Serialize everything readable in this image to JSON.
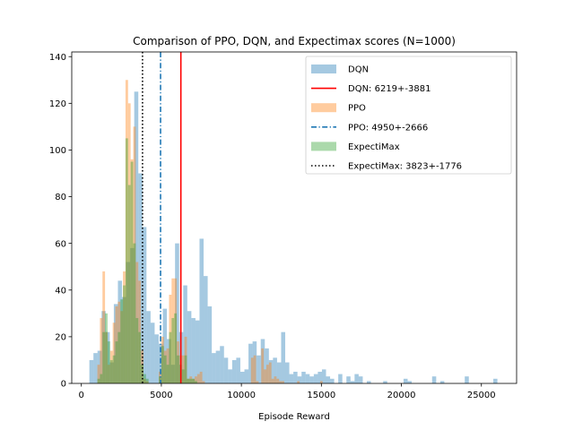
{
  "chart_data": {
    "type": "bar",
    "title": "Comparison of PPO, DQN, and Expectimax scores (N=1000)",
    "xlabel": "Episode Reward",
    "ylabel": "",
    "xlim": [
      -600,
      27200
    ],
    "ylim": [
      0,
      142
    ],
    "xticks": [
      0,
      5000,
      10000,
      15000,
      20000,
      25000
    ],
    "yticks": [
      0,
      20,
      40,
      60,
      80,
      100,
      120,
      140
    ],
    "legend_position": "top-right",
    "series": [
      {
        "name": "DQN",
        "kind": "histogram",
        "color": "#1f77b4",
        "alpha": 0.4,
        "bin_width": 255,
        "bins": [
          [
            500,
            10
          ],
          [
            755,
            13
          ],
          [
            1010,
            14
          ],
          [
            1265,
            31
          ],
          [
            1520,
            22
          ],
          [
            1775,
            9
          ],
          [
            2030,
            34
          ],
          [
            2285,
            44
          ],
          [
            2540,
            37
          ],
          [
            2795,
            52
          ],
          [
            3050,
            58
          ],
          [
            3305,
            125
          ],
          [
            3560,
            90
          ],
          [
            3815,
            67
          ],
          [
            4070,
            31
          ],
          [
            4325,
            26
          ],
          [
            4580,
            21
          ],
          [
            4835,
            17
          ],
          [
            5090,
            32
          ],
          [
            5345,
            19
          ],
          [
            5600,
            8
          ],
          [
            5855,
            60
          ],
          [
            6110,
            22
          ],
          [
            6365,
            42
          ],
          [
            6620,
            31
          ],
          [
            6875,
            28
          ],
          [
            7130,
            27
          ],
          [
            7385,
            62
          ],
          [
            7640,
            46
          ],
          [
            7895,
            33
          ],
          [
            8150,
            13
          ],
          [
            8405,
            14
          ],
          [
            8660,
            16
          ],
          [
            8915,
            11
          ],
          [
            9170,
            6
          ],
          [
            9425,
            10
          ],
          [
            9680,
            11
          ],
          [
            9935,
            5
          ],
          [
            10190,
            6
          ],
          [
            10445,
            17
          ],
          [
            10700,
            18
          ],
          [
            10955,
            12
          ],
          [
            11210,
            19
          ],
          [
            11465,
            15
          ],
          [
            11720,
            10
          ],
          [
            11975,
            11
          ],
          [
            12230,
            9
          ],
          [
            12485,
            22
          ],
          [
            12740,
            9
          ],
          [
            12995,
            4
          ],
          [
            13250,
            5
          ],
          [
            13505,
            3
          ],
          [
            13760,
            5
          ],
          [
            14015,
            4
          ],
          [
            14270,
            3
          ],
          [
            14525,
            4
          ],
          [
            14780,
            5
          ],
          [
            15035,
            6
          ],
          [
            15290,
            3
          ],
          [
            15545,
            2
          ],
          [
            16055,
            4
          ],
          [
            16565,
            3
          ],
          [
            16820,
            1
          ],
          [
            17075,
            4
          ],
          [
            17330,
            3
          ],
          [
            17840,
            1
          ],
          [
            18860,
            1
          ],
          [
            20135,
            2
          ],
          [
            20390,
            1
          ],
          [
            21920,
            3
          ],
          [
            22430,
            1
          ],
          [
            23960,
            3
          ],
          [
            25745,
            2
          ]
        ]
      },
      {
        "name": "PPO",
        "kind": "histogram",
        "color": "#ff7f0e",
        "alpha": 0.4,
        "bin_width": 160,
        "bins": [
          [
            1000,
            8
          ],
          [
            1160,
            28
          ],
          [
            1320,
            48
          ],
          [
            1480,
            22
          ],
          [
            1640,
            8
          ],
          [
            1800,
            14
          ],
          [
            1960,
            26
          ],
          [
            2120,
            33
          ],
          [
            2280,
            35
          ],
          [
            2440,
            31
          ],
          [
            2600,
            48
          ],
          [
            2760,
            130
          ],
          [
            2920,
            120
          ],
          [
            3080,
            96
          ],
          [
            3240,
            110
          ],
          [
            3400,
            52
          ],
          [
            3560,
            44
          ],
          [
            3720,
            14
          ],
          [
            3880,
            2
          ],
          [
            4040,
            1
          ],
          [
            4840,
            5
          ],
          [
            5000,
            20
          ],
          [
            5160,
            14
          ],
          [
            5320,
            15
          ],
          [
            5480,
            38
          ],
          [
            5640,
            45
          ],
          [
            5800,
            45
          ],
          [
            5960,
            18
          ],
          [
            6120,
            12
          ],
          [
            6280,
            12
          ],
          [
            6440,
            20
          ],
          [
            6600,
            2
          ],
          [
            6760,
            3
          ],
          [
            6920,
            2
          ],
          [
            7080,
            3
          ],
          [
            7240,
            4
          ],
          [
            7400,
            5
          ],
          [
            7560,
            1
          ],
          [
            10600,
            11
          ],
          [
            10760,
            12
          ],
          [
            10920,
            1
          ],
          [
            11240,
            15
          ],
          [
            11400,
            6
          ],
          [
            11560,
            8
          ],
          [
            11720,
            9
          ],
          [
            11880,
            2
          ],
          [
            12040,
            3
          ],
          [
            12200,
            2
          ],
          [
            12360,
            1
          ],
          [
            12520,
            1
          ],
          [
            13480,
            1
          ],
          [
            14920,
            1
          ]
        ]
      },
      {
        "name": "ExpectiMax",
        "kind": "histogram",
        "color": "#2ca02c",
        "alpha": 0.4,
        "bin_width": 160,
        "bins": [
          [
            1000,
            2
          ],
          [
            1160,
            4
          ],
          [
            1320,
            22
          ],
          [
            1480,
            30
          ],
          [
            1640,
            18
          ],
          [
            1800,
            10
          ],
          [
            1960,
            12
          ],
          [
            2120,
            18
          ],
          [
            2280,
            22
          ],
          [
            2440,
            36
          ],
          [
            2600,
            42
          ],
          [
            2760,
            105
          ],
          [
            2920,
            85
          ],
          [
            3080,
            95
          ],
          [
            3240,
            60
          ],
          [
            3400,
            28
          ],
          [
            3560,
            22
          ],
          [
            3720,
            8
          ],
          [
            3880,
            4
          ],
          [
            4040,
            2
          ],
          [
            4840,
            3
          ],
          [
            5000,
            16
          ],
          [
            5160,
            12
          ],
          [
            5320,
            8
          ],
          [
            5480,
            22
          ],
          [
            5640,
            28
          ],
          [
            5800,
            30
          ],
          [
            5960,
            12
          ],
          [
            6120,
            8
          ],
          [
            6280,
            6
          ],
          [
            6440,
            12
          ],
          [
            6600,
            2
          ],
          [
            6760,
            2
          ],
          [
            6920,
            2
          ],
          [
            7080,
            1
          ]
        ]
      }
    ],
    "vlines": [
      {
        "name": "DQN: 6219+-3881",
        "x": 6219,
        "color": "#ff0000",
        "style": "solid"
      },
      {
        "name": "PPO: 4950+-2666",
        "x": 4950,
        "color": "#1f77b4",
        "style": "dashdot"
      },
      {
        "name": "ExpectiMax: 3823+-1776",
        "x": 3823,
        "color": "#000000",
        "style": "dotted"
      }
    ],
    "legend": [
      {
        "label": "DQN",
        "kind": "patch",
        "color": "#1f77b4",
        "alpha": 0.4
      },
      {
        "label": "DQN: 6219+-3881",
        "kind": "line",
        "color": "#ff0000",
        "style": "solid"
      },
      {
        "label": "PPO",
        "kind": "patch",
        "color": "#ff7f0e",
        "alpha": 0.4
      },
      {
        "label": "PPO: 4950+-2666",
        "kind": "line",
        "color": "#1f77b4",
        "style": "dashdot"
      },
      {
        "label": "ExpectiMax",
        "kind": "patch",
        "color": "#2ca02c",
        "alpha": 0.4
      },
      {
        "label": "ExpectiMax: 3823+-1776",
        "kind": "line",
        "color": "#000000",
        "style": "dotted"
      }
    ]
  }
}
